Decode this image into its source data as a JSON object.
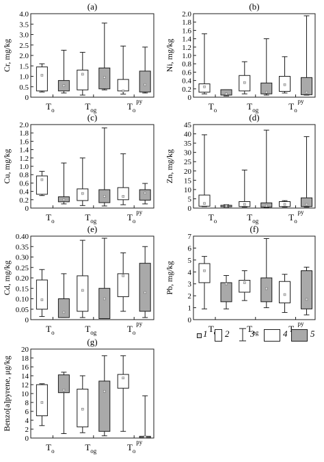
{
  "colors": {
    "open_box": "#ffffff",
    "filled_box": "#a9a9a9",
    "stroke": "#1a1a1a",
    "mean_marker": "#dcdcdc"
  },
  "legend": {
    "items": [
      {
        "num": "1",
        "icon": "mean-square-marker"
      },
      {
        "num": "2",
        "icon": "box-outline"
      },
      {
        "num": "3",
        "icon": "whisker-range"
      },
      {
        "num": "4",
        "icon": "open-box"
      },
      {
        "num": "5",
        "icon": "filled-box"
      }
    ]
  },
  "chart_data": [
    {
      "id": "a",
      "type": "box",
      "title": "(a)",
      "ylabel": "Cr, mg/kg",
      "ylim": [
        0,
        4.0
      ],
      "yticks": [
        "0",
        "0.5",
        "1.0",
        "1.5",
        "2.0",
        "2.5",
        "3.0",
        "3.5",
        "4.0"
      ],
      "tick_step": 0.5,
      "grid": false,
      "groups": [
        {
          "base": "T",
          "sub": "o",
          "sup": ""
        },
        {
          "base": "T",
          "sub": "og",
          "sup": ""
        },
        {
          "base": "T",
          "sub": "o",
          "sup": "py"
        }
      ],
      "boxes": [
        {
          "group": 0,
          "style": "open",
          "min": 0.25,
          "q1": 0.3,
          "q3": 1.45,
          "max": 1.6,
          "mean": 1.05
        },
        {
          "group": 0,
          "style": "filled",
          "min": 0.2,
          "q1": 0.3,
          "q3": 0.8,
          "max": 2.25,
          "mean": 0.55
        },
        {
          "group": 1,
          "style": "open",
          "min": 0.1,
          "q1": 0.35,
          "q3": 1.3,
          "max": 2.15,
          "mean": 1.1
        },
        {
          "group": 1,
          "style": "filled",
          "min": 0.35,
          "q1": 0.4,
          "q3": 1.4,
          "max": 3.55,
          "mean": 0.95
        },
        {
          "group": 2,
          "style": "open",
          "min": 0.15,
          "q1": 0.3,
          "q3": 0.85,
          "max": 2.45,
          "mean": 0.3
        },
        {
          "group": 2,
          "style": "filled",
          "min": 0.2,
          "q1": 0.25,
          "q3": 1.25,
          "max": 2.4,
          "mean": 0.6
        }
      ]
    },
    {
      "id": "b",
      "type": "box",
      "title": "(b)",
      "ylabel": "Ni, mg/kg",
      "ylim": [
        0,
        2.0
      ],
      "yticks": [
        "0",
        "0.2",
        "0.4",
        "0.6",
        "0.8",
        "1.0",
        "1.2",
        "1.4",
        "1.6",
        "1.8",
        "2.0"
      ],
      "tick_step": 0.2,
      "grid": false,
      "groups": [
        {
          "base": "T",
          "sub": "o",
          "sup": ""
        },
        {
          "base": "T",
          "sub": "og",
          "sup": ""
        },
        {
          "base": "T",
          "sub": "o",
          "sup": "py"
        }
      ],
      "boxes": [
        {
          "group": 0,
          "style": "open",
          "min": 0.08,
          "q1": 0.12,
          "q3": 0.32,
          "max": 1.52,
          "mean": 0.25
        },
        {
          "group": 0,
          "style": "filled",
          "min": 0.03,
          "q1": 0.05,
          "q3": 0.18,
          "max": 0.18,
          "mean": 0.08
        },
        {
          "group": 1,
          "style": "open",
          "min": 0.08,
          "q1": 0.15,
          "q3": 0.52,
          "max": 0.85,
          "mean": 0.35
        },
        {
          "group": 1,
          "style": "filled",
          "min": 0.05,
          "q1": 0.08,
          "q3": 0.34,
          "max": 1.4,
          "mean": 0.12
        },
        {
          "group": 2,
          "style": "open",
          "min": 0.1,
          "q1": 0.14,
          "q3": 0.5,
          "max": 0.97,
          "mean": 0.3
        },
        {
          "group": 2,
          "style": "filled",
          "min": 0.05,
          "q1": 0.06,
          "q3": 0.47,
          "max": 1.95,
          "mean": 0.12
        }
      ]
    },
    {
      "id": "c",
      "type": "box",
      "title": "(c)",
      "ylabel": "Cu, mg/kg",
      "ylim": [
        0,
        2.0
      ],
      "yticks": [
        "0",
        "0.2",
        "0.4",
        "0.6",
        "0.8",
        "1.0",
        "1.2",
        "1.4",
        "1.6",
        "1.8",
        "2.0"
      ],
      "tick_step": 0.2,
      "grid": false,
      "groups": [
        {
          "base": "T",
          "sub": "o",
          "sup": ""
        },
        {
          "base": "T",
          "sub": "og",
          "sup": ""
        },
        {
          "base": "T",
          "sub": "o",
          "sup": "py"
        }
      ],
      "boxes": [
        {
          "group": 0,
          "style": "open",
          "min": 0.3,
          "q1": 0.33,
          "q3": 0.77,
          "max": 0.88,
          "mean": 0.68
        },
        {
          "group": 0,
          "style": "filled",
          "min": 0.1,
          "q1": 0.15,
          "q3": 0.27,
          "max": 1.08,
          "mean": 0.2
        },
        {
          "group": 1,
          "style": "open",
          "min": 0.06,
          "q1": 0.18,
          "q3": 0.46,
          "max": 1.2,
          "mean": 0.35
        },
        {
          "group": 1,
          "style": "filled",
          "min": 0.05,
          "q1": 0.13,
          "q3": 0.44,
          "max": 1.92,
          "mean": 0.28
        },
        {
          "group": 2,
          "style": "open",
          "min": 0.08,
          "q1": 0.2,
          "q3": 0.49,
          "max": 1.3,
          "mean": 0.28
        },
        {
          "group": 2,
          "style": "filled",
          "min": 0.1,
          "q1": 0.19,
          "q3": 0.44,
          "max": 0.59,
          "mean": 0.36
        }
      ]
    },
    {
      "id": "d",
      "type": "box",
      "title": "(d)",
      "ylabel": "Zn, mg/kg",
      "ylim": [
        0,
        45
      ],
      "yticks": [
        "0",
        "5",
        "10",
        "15",
        "20",
        "25",
        "30",
        "35",
        "40",
        "45"
      ],
      "tick_step": 5,
      "grid": false,
      "groups": [
        {
          "base": "T",
          "sub": "o",
          "sup": ""
        },
        {
          "base": "T",
          "sub": "og",
          "sup": ""
        },
        {
          "base": "T",
          "sub": "o",
          "sup": "py"
        }
      ],
      "boxes": [
        {
          "group": 0,
          "style": "open",
          "min": 0.8,
          "q1": 1.0,
          "q3": 7.0,
          "max": 39.5,
          "mean": 2.5
        },
        {
          "group": 0,
          "style": "filled",
          "min": 0.5,
          "q1": 0.7,
          "q3": 1.5,
          "max": 1.8,
          "mean": 1.1
        },
        {
          "group": 1,
          "style": "open",
          "min": 0.5,
          "q1": 0.8,
          "q3": 3.5,
          "max": 20.5,
          "mean": 2.0
        },
        {
          "group": 1,
          "style": "filled",
          "min": 0.3,
          "q1": 0.5,
          "q3": 2.8,
          "max": 42.0,
          "mean": 1.2
        },
        {
          "group": 2,
          "style": "open",
          "min": 0.5,
          "q1": 0.8,
          "q3": 3.5,
          "max": 4.0,
          "mean": 2.0
        },
        {
          "group": 2,
          "style": "filled",
          "min": 0.5,
          "q1": 0.8,
          "q3": 5.5,
          "max": 38.5,
          "mean": 2.0
        }
      ]
    },
    {
      "id": "e",
      "type": "box",
      "title": "(e)",
      "ylabel": "Cd, mg/kg",
      "ylim": [
        0,
        0.4
      ],
      "yticks": [
        "0",
        "0.05",
        "0.10",
        "0.15",
        "0.20",
        "0.25",
        "0.30",
        "0.35",
        "0.40"
      ],
      "tick_step": 0.05,
      "grid": false,
      "groups": [
        {
          "base": "T",
          "sub": "o",
          "sup": ""
        },
        {
          "base": "T",
          "sub": "og",
          "sup": ""
        },
        {
          "base": "T",
          "sub": "o",
          "sup": "py"
        }
      ],
      "boxes": [
        {
          "group": 0,
          "style": "open",
          "min": 0.015,
          "q1": 0.05,
          "q3": 0.19,
          "max": 0.24,
          "mean": 0.095
        },
        {
          "group": 0,
          "style": "filled",
          "min": 0.01,
          "q1": 0.01,
          "q3": 0.1,
          "max": 0.22,
          "mean": 0.035
        },
        {
          "group": 1,
          "style": "open",
          "min": 0.01,
          "q1": 0.04,
          "q3": 0.21,
          "max": 0.38,
          "mean": 0.14
        },
        {
          "group": 1,
          "style": "filled",
          "min": 0.005,
          "q1": 0.005,
          "q3": 0.15,
          "max": 0.39,
          "mean": 0.1
        },
        {
          "group": 2,
          "style": "open",
          "min": 0.04,
          "q1": 0.11,
          "q3": 0.22,
          "max": 0.32,
          "mean": 0.21
        },
        {
          "group": 2,
          "style": "filled",
          "min": 0.01,
          "q1": 0.04,
          "q3": 0.27,
          "max": 0.35,
          "mean": 0.13
        }
      ]
    },
    {
      "id": "f",
      "type": "box",
      "title": "(f)",
      "ylabel": "Pb, mg/kg",
      "ylim": [
        0,
        7
      ],
      "yticks": [
        "0",
        "1",
        "2",
        "3",
        "4",
        "5",
        "6",
        "7"
      ],
      "tick_step": 1,
      "grid": false,
      "groups": [
        {
          "base": "T",
          "sub": "o",
          "sup": ""
        },
        {
          "base": "T",
          "sub": "og",
          "sup": ""
        },
        {
          "base": "T",
          "sub": "o",
          "sup": "py"
        }
      ],
      "boxes": [
        {
          "group": 0,
          "style": "open",
          "min": 0.9,
          "q1": 3.1,
          "q3": 4.7,
          "max": 5.3,
          "mean": 4.1
        },
        {
          "group": 0,
          "style": "filled",
          "min": 0.9,
          "q1": 1.5,
          "q3": 3.1,
          "max": 3.7,
          "mean": 3.0
        },
        {
          "group": 1,
          "style": "open",
          "min": 1.6,
          "q1": 2.3,
          "q3": 3.3,
          "max": 4.1,
          "mean": 3.1
        },
        {
          "group": 1,
          "style": "filled",
          "min": 1.0,
          "q1": 1.5,
          "q3": 3.5,
          "max": 6.8,
          "mean": 2.6
        },
        {
          "group": 2,
          "style": "open",
          "min": 0.6,
          "q1": 1.4,
          "q3": 3.2,
          "max": 3.8,
          "mean": 2.1
        },
        {
          "group": 2,
          "style": "filled",
          "min": 0.4,
          "q1": 0.9,
          "q3": 4.1,
          "max": 4.4,
          "mean": 1.7
        }
      ]
    },
    {
      "id": "g",
      "type": "box",
      "title": "(g)",
      "ylabel": "Benzo[a]pyrene, μg/kg",
      "ylim": [
        0,
        20
      ],
      "yticks": [
        "0",
        "2",
        "4",
        "6",
        "8",
        "10",
        "12",
        "14",
        "16",
        "18",
        "20"
      ],
      "tick_step": 2,
      "grid": false,
      "groups": [
        {
          "base": "T",
          "sub": "o",
          "sup": ""
        },
        {
          "base": "T",
          "sub": "og",
          "sup": ""
        },
        {
          "base": "T",
          "sub": "o",
          "sup": "py"
        }
      ],
      "boxes": [
        {
          "group": 0,
          "style": "open",
          "min": 2.8,
          "q1": 5.0,
          "q3": 12.0,
          "max": 12.2,
          "mean": 8.0
        },
        {
          "group": 0,
          "style": "filled",
          "min": 1.0,
          "q1": 10.2,
          "q3": 14.2,
          "max": 14.8,
          "mean": 10.8
        },
        {
          "group": 1,
          "style": "open",
          "min": 1.2,
          "q1": 2.5,
          "q3": 11.0,
          "max": 14.0,
          "mean": 6.5
        },
        {
          "group": 1,
          "style": "filled",
          "min": 0.5,
          "q1": 1.5,
          "q3": 12.8,
          "max": 18.5,
          "mean": 10.5
        },
        {
          "group": 2,
          "style": "open",
          "min": 1.5,
          "q1": 11.2,
          "q3": 14.3,
          "max": 18.5,
          "mean": 13.5
        },
        {
          "group": 2,
          "style": "filled",
          "min": 0.1,
          "q1": 0.1,
          "q3": 0.4,
          "max": 9.5,
          "mean": 0.3
        }
      ]
    }
  ]
}
